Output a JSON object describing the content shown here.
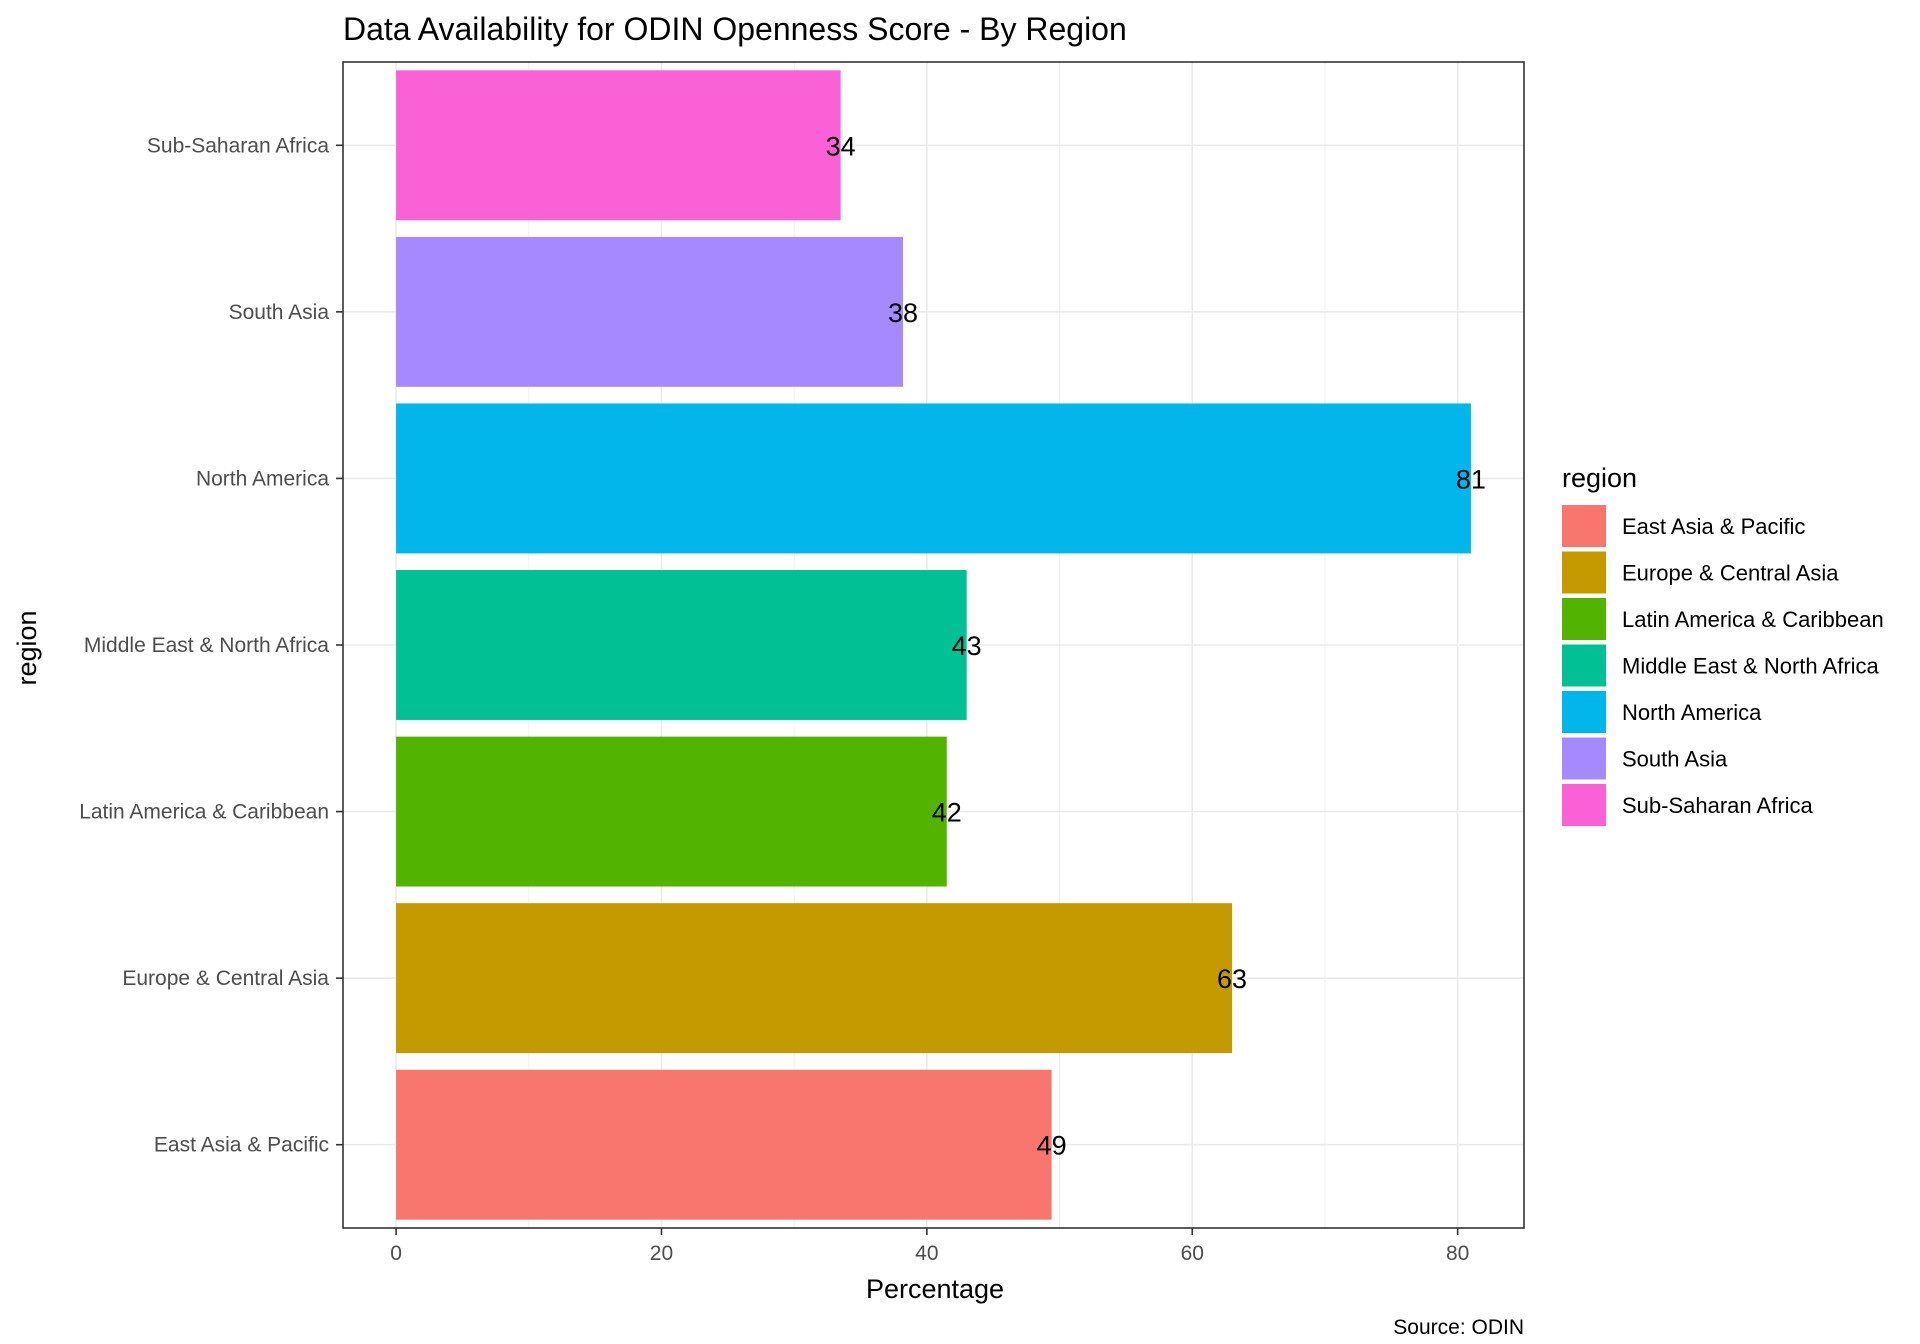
{
  "chart_data": {
    "type": "bar",
    "orientation": "horizontal",
    "title": "Data Availability for ODIN Openness Score - By Region",
    "xlabel": "Percentage",
    "ylabel": "region",
    "caption": "Source: ODIN",
    "xlim": [
      -4,
      85
    ],
    "xticks": [
      "0",
      "20",
      "40",
      "60",
      "80"
    ],
    "grid": true,
    "legend_title": "region",
    "legend_position": "right",
    "categories": [
      "East Asia & Pacific",
      "Europe & Central Asia",
      "Latin America & Caribbean",
      "Middle East & North Africa",
      "North America",
      "South Asia",
      "Sub-Saharan Africa"
    ],
    "values": [
      49.4,
      63,
      41.5,
      43,
      81,
      38.2,
      33.5
    ],
    "data_labels": [
      "49",
      "63",
      "42",
      "43",
      "81",
      "38",
      "34"
    ],
    "colors": [
      "#F8766D",
      "#C49A00",
      "#53B400",
      "#00C094",
      "#00B6EB",
      "#A58AFF",
      "#FB61D7"
    ]
  }
}
